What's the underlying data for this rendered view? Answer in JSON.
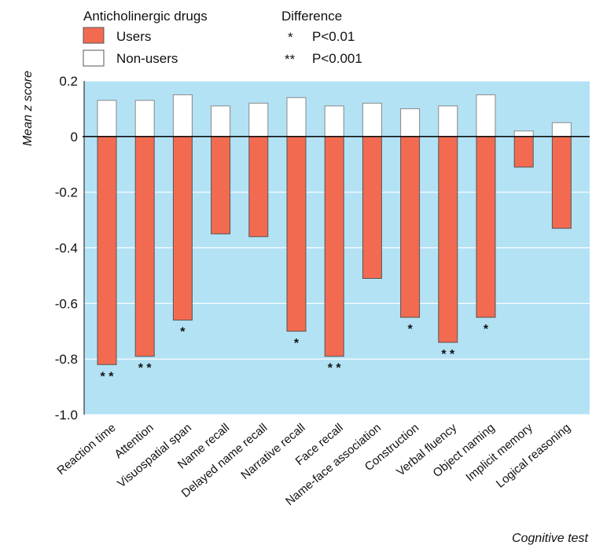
{
  "chart_data": {
    "type": "bar",
    "title": "",
    "ylabel": "Mean z score",
    "xlabel": "Cognitive test",
    "ylim": [
      -1.0,
      0.2
    ],
    "yticks": [
      "0.2",
      "0",
      "-0.2",
      "-0.4",
      "-0.6",
      "-0.8",
      "-1.0"
    ],
    "yticks_values": [
      0.2,
      0,
      -0.2,
      -0.4,
      -0.6,
      -0.8,
      -1.0
    ],
    "grid": true,
    "legend_placement": "top-left",
    "categories": [
      "Reaction time",
      "Attention",
      "Visuospatial span",
      "Name recall",
      "Delayed name recall",
      "Narrative recall",
      "Face recall",
      "Name-face association",
      "Construction",
      "Verbal fluency",
      "Object naming",
      "Implicit memory",
      "Logical reasoning"
    ],
    "series": [
      {
        "name": "Users",
        "color": "#f26b50",
        "values": [
          -0.82,
          -0.79,
          -0.66,
          -0.35,
          -0.36,
          -0.7,
          -0.79,
          -0.51,
          -0.65,
          -0.74,
          -0.65,
          -0.11,
          -0.33
        ]
      },
      {
        "name": "Non-users",
        "color": "#ffffff",
        "values": [
          0.13,
          0.13,
          0.15,
          0.11,
          0.12,
          0.14,
          0.11,
          0.12,
          0.1,
          0.11,
          0.15,
          0.02,
          0.05
        ]
      }
    ],
    "significance": [
      "**",
      "**",
      "*",
      "",
      "",
      "*",
      "**",
      "",
      "*",
      "**",
      "*",
      "",
      ""
    ]
  },
  "legend": {
    "group_title": "Anticholinergic drugs",
    "users_label": "Users",
    "nonusers_label": "Non-users",
    "diff_title": "Difference",
    "diff_entries": [
      {
        "symbol": "*",
        "label": "P<0.01"
      },
      {
        "symbol": "**",
        "label": "P<0.001"
      }
    ]
  },
  "colors": {
    "plot_background": "#b3e2f5",
    "gridline": "#ffffff",
    "users": "#f26b50",
    "nonusers": "#ffffff",
    "bar_outline": "#888888"
  }
}
